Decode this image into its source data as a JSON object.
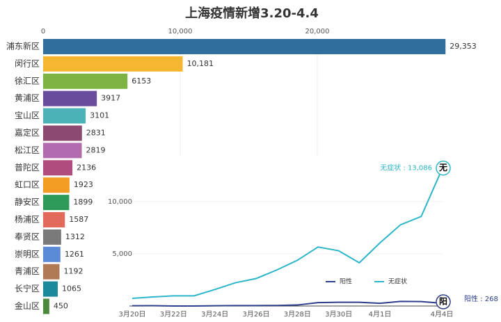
{
  "chart_data": [
    {
      "type": "bar",
      "orientation": "horizontal",
      "title": "上海疫情新增3.20-4.4",
      "categories": [
        "浦东新区",
        "闵行区",
        "徐汇区",
        "黄浦区",
        "宝山区",
        "嘉定区",
        "松江区",
        "普陀区",
        "虹口区",
        "静安区",
        "杨浦区",
        "奉贤区",
        "崇明区",
        "青浦区",
        "长宁区",
        "金山区"
      ],
      "values": [
        29353,
        10181,
        6153,
        3917,
        3101,
        2831,
        2819,
        2136,
        1923,
        1899,
        1587,
        1312,
        1261,
        1192,
        1065,
        450
      ],
      "value_labels": [
        "29,353",
        "10,181",
        "6153",
        "3917",
        "3101",
        "2831",
        "2819",
        "2136",
        "1923",
        "1899",
        "1587",
        "1312",
        "1261",
        "1192",
        "1065",
        "450"
      ],
      "colors": [
        "#2f6e9d",
        "#f5b731",
        "#7cb342",
        "#6a4c9c",
        "#4bb3b8",
        "#8c4a73",
        "#b36bb0",
        "#b04c7e",
        "#f39c24",
        "#2e9a5a",
        "#e26a5a",
        "#7a7a7a",
        "#5b8bd6",
        "#b07a55",
        "#1b8a9a",
        "#4a8a3a"
      ],
      "xlim": [
        0,
        30000
      ],
      "xticks": [
        0,
        {
          "value": 10000,
          "label": "10,000"
        },
        {
          "value": 20000,
          "label": "20,000"
        }
      ],
      "grid": true
    },
    {
      "type": "line",
      "categories": [
        "3月20日",
        null,
        "3月22日",
        null,
        "3月24日",
        null,
        "3月26日",
        null,
        "3月28日",
        null,
        "3月30日",
        null,
        "4月1日",
        null,
        null,
        "4月4日"
      ],
      "series": [
        {
          "name": "阳性",
          "color": "#2c3e8c",
          "values": [
            24,
            31,
            4,
            4,
            29,
            38,
            45,
            50,
            96,
            326,
            355,
            358,
            260,
            438,
            425,
            268
          ],
          "end_label": "阳性 : 268",
          "badge": "阳"
        },
        {
          "name": "无症状",
          "color": "#2bb5c8",
          "values": [
            734,
            865,
            977,
            979,
            1580,
            2231,
            2631,
            3450,
            4381,
            5656,
            5298,
            4144,
            6051,
            7788,
            8581,
            13086
          ],
          "end_label": "无症状 : 13,086",
          "badge": "无"
        }
      ],
      "ylim": [
        0,
        14000
      ],
      "yticks": [
        {
          "value": 5000,
          "label": "5,000"
        },
        {
          "value": 10000,
          "label": "10,000"
        }
      ]
    }
  ]
}
